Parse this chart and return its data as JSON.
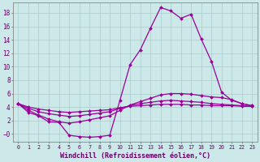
{
  "bg_color": "#cce8e8",
  "grid_color": "#aacccc",
  "line_color": "#990099",
  "marker": "D",
  "markersize": 2.0,
  "linewidth": 0.9,
  "xlabel": "Windchill (Refroidissement éolien,°C)",
  "xlabel_fontsize": 6.0,
  "xtick_fontsize": 4.8,
  "ytick_fontsize": 5.5,
  "xlim": [
    -0.5,
    23.5
  ],
  "ylim": [
    -1.2,
    19.5
  ],
  "yticks": [
    0,
    2,
    4,
    6,
    8,
    10,
    12,
    14,
    16,
    18
  ],
  "xticks": [
    0,
    1,
    2,
    3,
    4,
    5,
    6,
    7,
    8,
    9,
    10,
    11,
    12,
    13,
    14,
    15,
    16,
    17,
    18,
    19,
    20,
    21,
    22,
    23
  ],
  "line1_x": [
    0,
    1,
    2,
    3,
    4,
    5,
    6,
    7,
    8,
    9,
    10,
    11,
    12,
    13,
    14,
    15,
    16,
    17,
    18,
    19,
    20,
    21,
    22,
    23
  ],
  "line1_y": [
    4.5,
    3.2,
    2.7,
    1.8,
    1.7,
    -0.2,
    -0.4,
    -0.5,
    -0.4,
    -0.2,
    5.0,
    10.3,
    12.5,
    15.7,
    18.8,
    18.3,
    17.2,
    17.8,
    14.1,
    10.8,
    6.2,
    5.0,
    4.5,
    4.2
  ],
  "line2_x": [
    0,
    1,
    2,
    3,
    4,
    5,
    6,
    7,
    8,
    9,
    10,
    11,
    12,
    13,
    14,
    15,
    16,
    17,
    18,
    19,
    20,
    21,
    22,
    23
  ],
  "line2_y": [
    4.5,
    3.5,
    2.8,
    2.2,
    1.8,
    1.6,
    1.8,
    2.1,
    2.4,
    2.7,
    3.5,
    4.3,
    4.8,
    5.3,
    5.8,
    6.0,
    6.0,
    5.9,
    5.7,
    5.5,
    5.4,
    5.1,
    4.5,
    4.2
  ],
  "line3_x": [
    0,
    1,
    2,
    3,
    4,
    5,
    6,
    7,
    8,
    9,
    10,
    11,
    12,
    13,
    14,
    15,
    16,
    17,
    18,
    19,
    20,
    21,
    22,
    23
  ],
  "line3_y": [
    4.5,
    3.8,
    3.3,
    3.0,
    2.8,
    2.6,
    2.7,
    2.9,
    3.1,
    3.3,
    3.8,
    4.2,
    4.5,
    4.7,
    4.9,
    5.0,
    4.9,
    4.8,
    4.7,
    4.5,
    4.4,
    4.3,
    4.2,
    4.1
  ],
  "line4_x": [
    0,
    1,
    2,
    3,
    4,
    5,
    6,
    7,
    8,
    9,
    10,
    11,
    12,
    13,
    14,
    15,
    16,
    17,
    18,
    19,
    20,
    21,
    22,
    23
  ],
  "line4_y": [
    4.5,
    4.0,
    3.7,
    3.5,
    3.3,
    3.2,
    3.3,
    3.4,
    3.5,
    3.6,
    3.9,
    4.1,
    4.2,
    4.3,
    4.4,
    4.4,
    4.4,
    4.3,
    4.3,
    4.2,
    4.2,
    4.2,
    4.1,
    4.1
  ]
}
